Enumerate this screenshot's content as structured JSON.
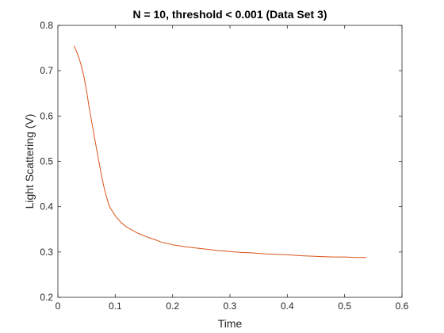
{
  "chart_data": {
    "type": "line",
    "title": "N = 10, threshold < 0.001 (Data Set 3)",
    "xlabel": "Time",
    "ylabel": "Light Scattering (V)",
    "xlim": [
      0,
      0.6
    ],
    "ylim": [
      0.2,
      0.8
    ],
    "xticks": [
      "0",
      "0.1",
      "0.2",
      "0.3",
      "0.4",
      "0.5",
      "0.6"
    ],
    "yticks": [
      "0.2",
      "0.3",
      "0.4",
      "0.5",
      "0.6",
      "0.7",
      "0.8"
    ],
    "grid": false,
    "box": true,
    "series": [
      {
        "color": "#d95319",
        "x": [
          0.028,
          0.035,
          0.04,
          0.045,
          0.05,
          0.055,
          0.06,
          0.065,
          0.07,
          0.075,
          0.08,
          0.085,
          0.09,
          0.095,
          0.1,
          0.11,
          0.12,
          0.13,
          0.14,
          0.15,
          0.16,
          0.17,
          0.18,
          0.19,
          0.2,
          0.22,
          0.24,
          0.26,
          0.28,
          0.3,
          0.32,
          0.34,
          0.36,
          0.38,
          0.4,
          0.42,
          0.44,
          0.46,
          0.48,
          0.5,
          0.52,
          0.538
        ],
        "y": [
          0.755,
          0.735,
          0.715,
          0.69,
          0.655,
          0.615,
          0.58,
          0.545,
          0.51,
          0.475,
          0.445,
          0.42,
          0.4,
          0.39,
          0.38,
          0.365,
          0.355,
          0.348,
          0.341,
          0.336,
          0.331,
          0.327,
          0.322,
          0.319,
          0.316,
          0.312,
          0.309,
          0.306,
          0.303,
          0.301,
          0.299,
          0.298,
          0.296,
          0.295,
          0.294,
          0.292,
          0.291,
          0.29,
          0.289,
          0.289,
          0.288,
          0.288
        ]
      }
    ]
  }
}
